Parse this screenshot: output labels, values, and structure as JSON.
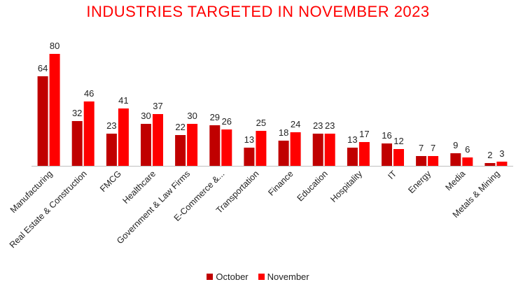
{
  "chart_data": {
    "type": "bar",
    "title": "INDUSTRIES TARGETED IN NOVEMBER 2023",
    "categories": [
      "Manufacturing",
      "Real Estate & Construction",
      "FMCG",
      "Healthcare",
      "Government & Law Firms",
      "E-Commerce &...",
      "Transportation",
      "Finance",
      "Education",
      "Hospitality",
      "IT",
      "Energy",
      "Media",
      "Metals & Mining"
    ],
    "series": [
      {
        "name": "October",
        "color": "#c00000",
        "values": [
          64,
          32,
          23,
          30,
          22,
          29,
          13,
          18,
          23,
          13,
          16,
          7,
          9,
          2
        ]
      },
      {
        "name": "November",
        "color": "#ff0000",
        "values": [
          80,
          46,
          41,
          37,
          30,
          26,
          25,
          24,
          23,
          17,
          12,
          7,
          6,
          3
        ]
      }
    ],
    "ylim": [
      0,
      80
    ],
    "grid": false,
    "legend_position": "bottom",
    "title_color": "#ff0000"
  }
}
